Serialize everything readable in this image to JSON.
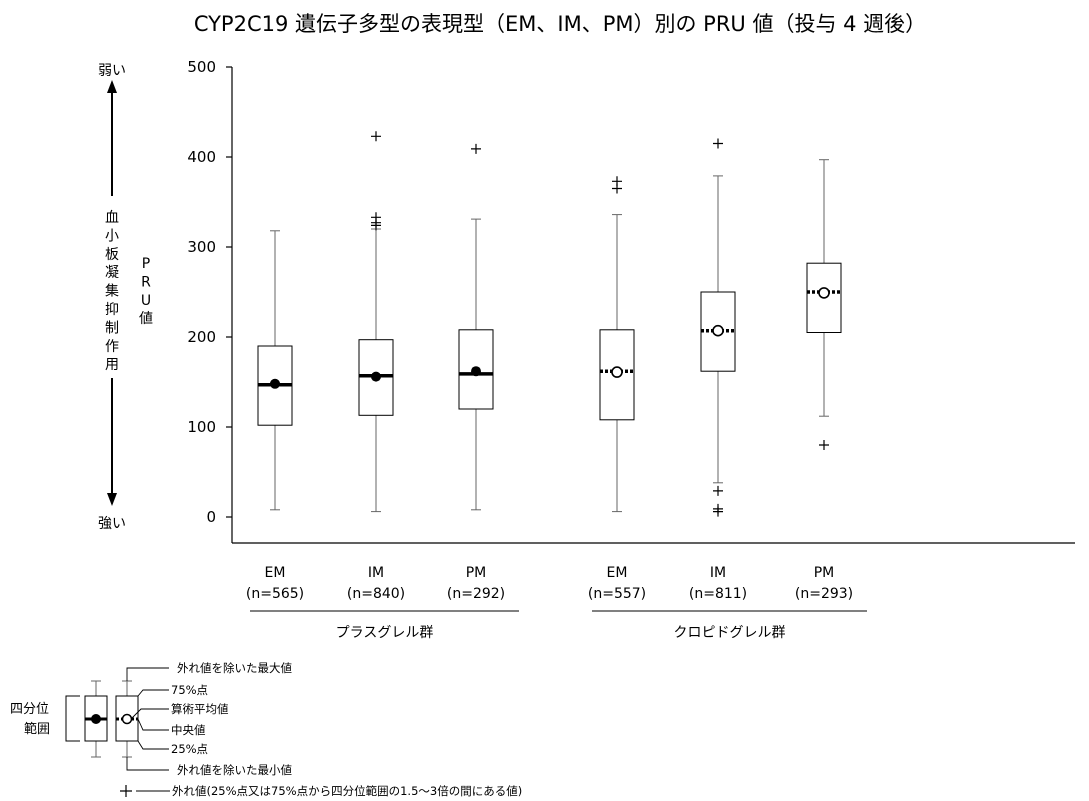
{
  "chart_data": {
    "type": "box",
    "title": "CYP2C19 遺伝子多型の表現型（EM、IM、PM）別の PRU 値（投与 4 週後）",
    "ylabel": "PRU値",
    "ylim": [
      0,
      500
    ],
    "yticks": [
      0,
      100,
      200,
      300,
      400,
      500
    ],
    "side_axis": {
      "top": "弱い",
      "bottom": "強い",
      "label": "血小板凝集抑制作用"
    },
    "groups": [
      {
        "name": "プラスグレル群",
        "categories": [
          0,
          1,
          2
        ]
      },
      {
        "name": "クロピドグレル群",
        "categories": [
          3,
          4,
          5
        ]
      }
    ],
    "categories": [
      {
        "label": "EM",
        "n": "(n=565)",
        "whisker_low": 8,
        "q1": 102,
        "median": 147,
        "mean": 148,
        "q3": 190,
        "whisker_high": 318,
        "outliers": [],
        "style": "solid"
      },
      {
        "label": "IM",
        "n": "(n=840)",
        "whisker_low": 6,
        "q1": 113,
        "median": 157,
        "mean": 156,
        "q3": 197,
        "whisker_high": 320,
        "outliers": [
          324,
          327,
          333,
          423
        ],
        "style": "solid"
      },
      {
        "label": "PM",
        "n": "(n=292)",
        "whisker_low": 8,
        "q1": 120,
        "median": 159,
        "mean": 162,
        "q3": 208,
        "whisker_high": 331,
        "outliers": [
          409
        ],
        "style": "solid"
      },
      {
        "label": "EM",
        "n": "(n=557)",
        "whisker_low": 6,
        "q1": 108,
        "median": 162,
        "mean": 161,
        "q3": 208,
        "whisker_high": 336,
        "outliers": [
          365,
          373
        ],
        "style": "dotted"
      },
      {
        "label": "IM",
        "n": "(n=811)",
        "whisker_low": 38,
        "q1": 162,
        "median": 207,
        "mean": 207,
        "q3": 250,
        "whisker_high": 379,
        "outliers": [
          6,
          9,
          29,
          415
        ],
        "style": "dotted"
      },
      {
        "label": "PM",
        "n": "(n=293)",
        "whisker_low": 112,
        "q1": 205,
        "median": 250,
        "mean": 249,
        "q3": 282,
        "whisker_high": 397,
        "outliers": [
          80
        ],
        "style": "dotted"
      }
    ],
    "legend": {
      "max": "外れ値を除いた最大値",
      "q3": "75%点",
      "mean": "算術平均値",
      "median": "中央値",
      "q1": "25%点",
      "min": "外れ値を除いた最小値",
      "outlier": "外れ値(25%点又は75%点から四分位範囲の1.5～3倍の間にある値)",
      "iqr": "四分位範囲"
    }
  }
}
